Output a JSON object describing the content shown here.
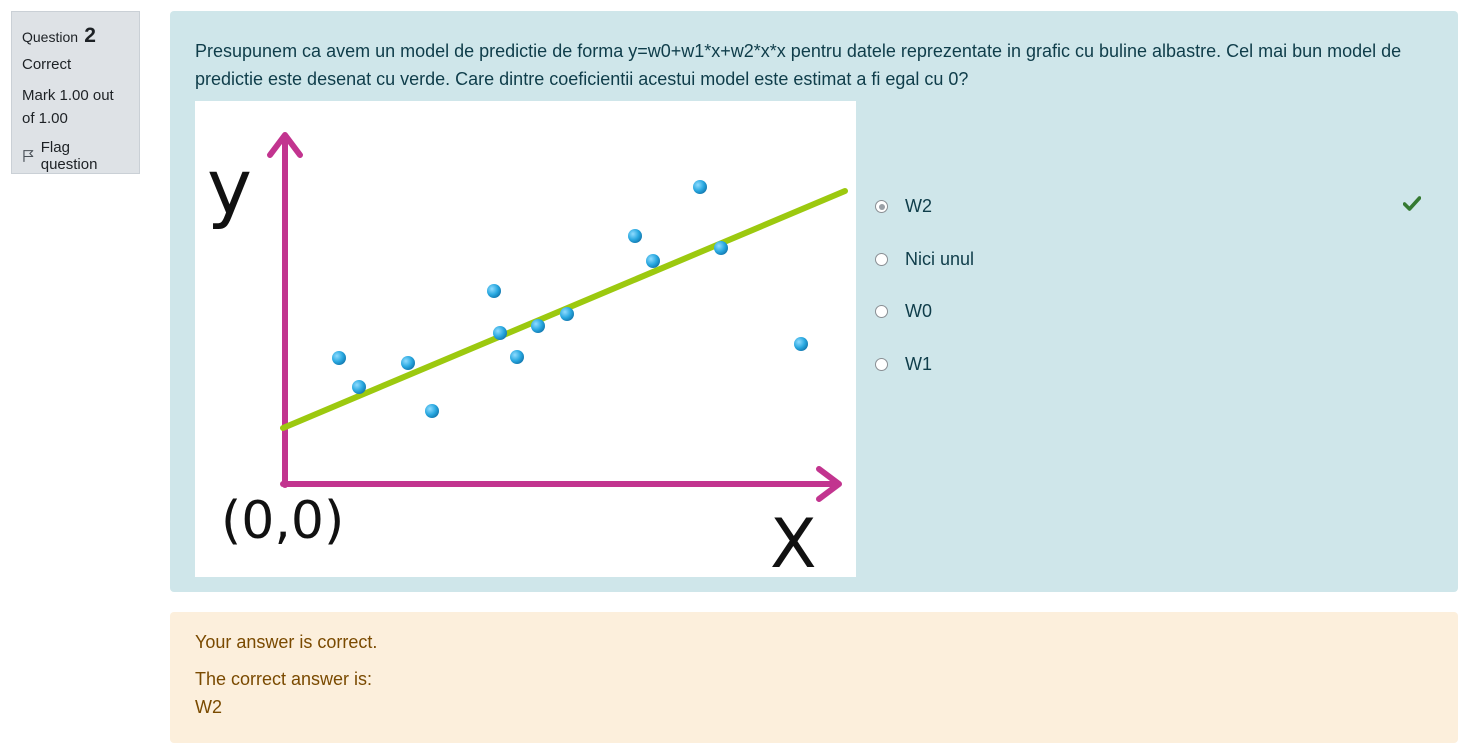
{
  "info": {
    "question_label": "Question",
    "question_number": "2",
    "state": "Correct",
    "grade": "Mark 1.00 out of 1.00",
    "flag_label": "Flag question"
  },
  "question": {
    "text": "Presupunem ca avem un model de predictie de forma y=w0+w1*x+w2*x*x pentru datele reprezentate in grafic cu buline albastre. Cel mai bun model de predictie este desenat cu verde. Care dintre coeficientii acestui model este estimat a fi egal cu 0?",
    "figure": {
      "y_label": "y",
      "x_label": "X",
      "origin_label": "(0,0)",
      "axis_color": "#c2348f",
      "line_color": "#9cc90f",
      "point_color": "#29a8e0"
    }
  },
  "options": [
    {
      "label": "W2",
      "selected": true,
      "correct": true
    },
    {
      "label": "Nici unul",
      "selected": false
    },
    {
      "label": "W0",
      "selected": false
    },
    {
      "label": "W1",
      "selected": false
    }
  ],
  "outcome": {
    "feedback": "Your answer is correct.",
    "right_answer_label": "The correct answer is:",
    "right_answer_value": "W2"
  },
  "colors": {
    "info_bg": "#dee2e6",
    "formulation_bg": "#cfe6ea",
    "outcome_bg": "#fcefdc",
    "correct_tick": "#357a32"
  }
}
